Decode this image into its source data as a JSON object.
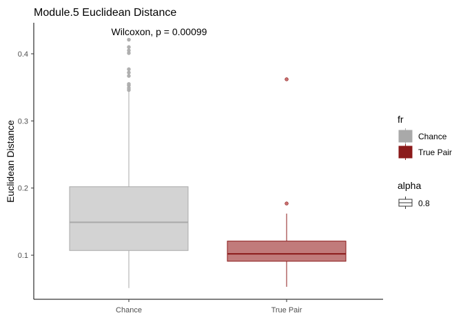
{
  "chart_data": {
    "type": "boxplot",
    "title": "Module.5 Euclidean Distance",
    "xlabel": "",
    "ylabel": "Euclidean Distance",
    "annotation": "Wilcoxon, p = 0.00099",
    "ylim": [
      0.04,
      0.45
    ],
    "yticks": [
      0.1,
      0.2,
      0.3,
      0.4
    ],
    "ytick_labels": [
      "0.1",
      "0.2",
      "0.3",
      "0.4"
    ],
    "grid": false,
    "categories": [
      "Chance",
      "True Pair"
    ],
    "series": [
      {
        "category": "Chance",
        "whisker_low": 0.051,
        "q1": 0.107,
        "median": 0.149,
        "q3": 0.202,
        "whisker_high": 0.344,
        "outliers": [
          0.346,
          0.349,
          0.353,
          0.355,
          0.367,
          0.372,
          0.377,
          0.401,
          0.405,
          0.41,
          0.421
        ],
        "fill": "#d3d3d3",
        "stroke": "#a9a9a9",
        "outlier_color": "#b0b0b0"
      },
      {
        "category": "True Pair",
        "whisker_low": 0.053,
        "q1": 0.091,
        "median": 0.102,
        "q3": 0.121,
        "whisker_high": 0.162,
        "outliers": [
          0.177,
          0.362
        ],
        "fill": "#c17b7b",
        "stroke": "#8b1a1a",
        "outlier_color": "#c87070"
      }
    ],
    "legend": {
      "placement": "right",
      "fr_title": "fr",
      "fr_items": [
        {
          "label": "Chance",
          "color": "#a9a9a9"
        },
        {
          "label": "True Pair",
          "color": "#8b1a1a"
        }
      ],
      "alpha_title": "alpha",
      "alpha_items": [
        {
          "label": "0.8"
        }
      ]
    }
  }
}
